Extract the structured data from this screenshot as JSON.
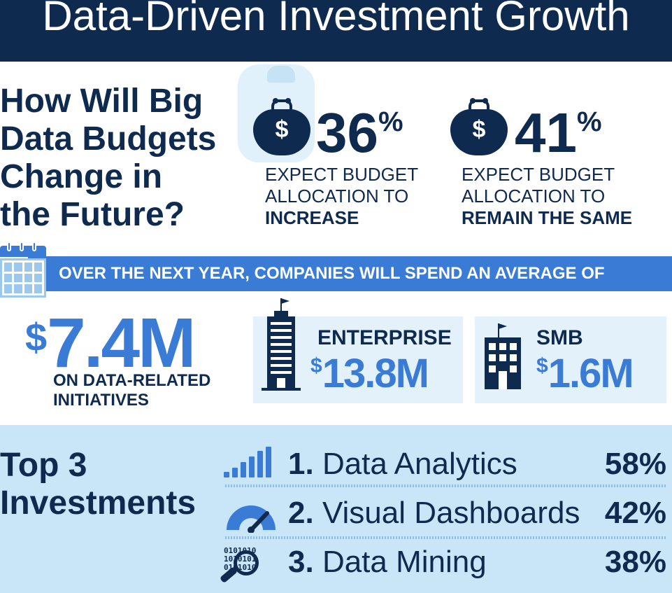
{
  "header": {
    "title": "Data-Driven Investment Growth"
  },
  "question": {
    "lines": [
      "How Will Big",
      "Data Budgets",
      "Change in",
      "the Future?"
    ]
  },
  "budget_stats": [
    {
      "value": "36",
      "unit": "%",
      "caption_lines": [
        "EXPECT BUDGET",
        "ALLOCATION TO"
      ],
      "emphasis": "INCREASE",
      "icon": "money-bag-icon"
    },
    {
      "value": "41",
      "unit": "%",
      "caption_lines": [
        "EXPECT BUDGET",
        "ALLOCATION TO"
      ],
      "emphasis": "REMAIN THE SAME",
      "icon": "money-bag-icon"
    }
  ],
  "banner": {
    "text": "OVER THE NEXT YEAR, COMPANIES WILL SPEND AN AVERAGE OF",
    "icon": "calendar-icon"
  },
  "average_spend": {
    "currency": "$",
    "amount": "7.4M",
    "caption_lines": [
      "ON DATA-RELATED",
      "INITIATIVES"
    ]
  },
  "segments": [
    {
      "label": "ENTERPRISE",
      "currency": "$",
      "amount": "13.8M",
      "icon": "skyscraper-icon"
    },
    {
      "label": "SMB",
      "currency": "$",
      "amount": "1.6M",
      "icon": "small-building-icon"
    }
  ],
  "top_investments": {
    "title_lines": [
      "Top 3",
      "Investments"
    ],
    "items": [
      {
        "rank": "1.",
        "name": "Data Analytics",
        "percent": "58%",
        "icon": "bar-chart-icon"
      },
      {
        "rank": "2.",
        "name": "Visual Dashboards",
        "percent": "42%",
        "icon": "gauge-icon"
      },
      {
        "rank": "3.",
        "name": "Data Mining",
        "percent": "38%",
        "icon": "magnifier-binary-icon"
      }
    ]
  },
  "binary_text": [
    "0101010",
    "1010101",
    "0101010"
  ],
  "colors": {
    "navy": "#0f2a4f",
    "blue": "#3a7bd5",
    "light_panel": "#e3f1fb",
    "bottom_band": "#c8e6f8"
  }
}
